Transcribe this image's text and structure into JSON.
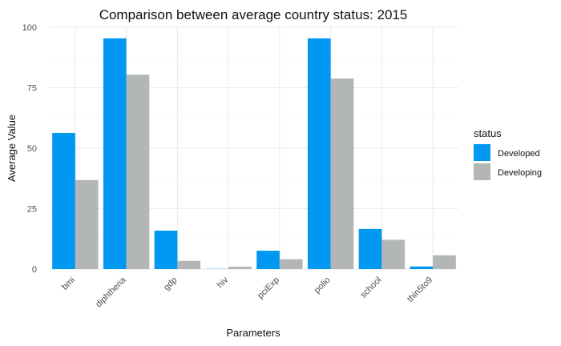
{
  "chart_data": {
    "type": "bar",
    "title": "Comparison between average country status: 2015",
    "xlabel": "Parameters",
    "ylabel": "Average Value",
    "categories": [
      "bmi",
      "diphtheria",
      "gdp",
      "hiv",
      "pciExp",
      "polio",
      "school",
      "thin5to9"
    ],
    "series": [
      {
        "name": "Developed",
        "color": "#0098f0",
        "values": [
          56.3,
          95.4,
          15.9,
          0.1,
          7.6,
          95.4,
          16.6,
          1.1
        ]
      },
      {
        "name": "Developing",
        "color": "#b2b6b6",
        "values": [
          36.8,
          80.4,
          3.4,
          1.0,
          4.1,
          78.8,
          12.1,
          5.7
        ]
      }
    ],
    "ylim": [
      0,
      100
    ],
    "yticks": [
      0,
      25,
      50,
      75,
      100
    ],
    "grid": true,
    "legend": {
      "title": "status",
      "position": "right"
    }
  }
}
